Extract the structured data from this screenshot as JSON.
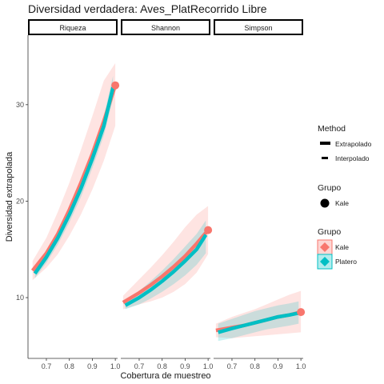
{
  "chart_data": {
    "type": "line",
    "title": "Diversidad verdadera: Aves_PlatRecorrido Libre",
    "xlabel": "Cobertura de muestreo",
    "ylabel": "Diversidad extrapolada",
    "x_ticks": [
      "0.7",
      "0.8",
      "0.9",
      "1.0"
    ],
    "y_ticks": [
      "10",
      "20",
      "30"
    ],
    "xlim": [
      0.62,
      1.01
    ],
    "ylim": [
      3.7,
      37.2
    ],
    "grid": false,
    "legend_position": "right",
    "colors": {
      "Kale": "#F8766D",
      "Platero": "#00BFC4"
    },
    "facets": [
      {
        "label": "Riqueza",
        "series": [
          {
            "name": "Kale",
            "color": "#F8766D",
            "x": [
              0.64,
              0.7,
              0.75,
              0.8,
              0.85,
              0.9,
              0.95,
              1.0
            ],
            "y": [
              12.8,
              14.6,
              16.6,
              19.1,
              21.9,
              24.9,
              28.3,
              32.0
            ],
            "lower": [
              11.8,
              13.1,
              14.5,
              16.4,
              18.6,
              21.2,
              24.2,
              27.8
            ],
            "upper": [
              13.8,
              16.2,
              18.9,
              21.9,
              25.3,
              28.8,
              32.5,
              34.3
            ]
          },
          {
            "name": "Platero",
            "color": "#00BFC4",
            "x": [
              0.65,
              0.7,
              0.75,
              0.8,
              0.85,
              0.9,
              0.95,
              0.99
            ],
            "y": [
              12.5,
              14.2,
              16.2,
              18.6,
              21.3,
              24.4,
              27.8,
              31.8
            ],
            "lower": [
              12.0,
              13.6,
              15.5,
              17.8,
              20.4,
              23.4,
              26.8,
              30.6
            ],
            "upper": [
              13.0,
              14.8,
              16.9,
              19.4,
              22.2,
              25.4,
              28.8,
              33.0
            ]
          }
        ],
        "endpoints": [
          {
            "name": "Kale",
            "x": 1.0,
            "y": 32.0
          }
        ]
      },
      {
        "label": "Shannon",
        "series": [
          {
            "name": "Kale",
            "color": "#F8766D",
            "x": [
              0.63,
              0.7,
              0.75,
              0.8,
              0.85,
              0.9,
              0.95,
              1.0
            ],
            "y": [
              9.5,
              10.5,
              11.3,
              12.2,
              13.2,
              14.3,
              15.6,
              17.0
            ],
            "lower": [
              8.8,
              9.3,
              9.6,
              10.0,
              10.6,
              11.4,
              12.6,
              14.5
            ],
            "upper": [
              10.2,
              11.9,
              13.1,
              14.4,
              15.8,
              17.3,
              18.6,
              19.5
            ]
          },
          {
            "name": "Platero",
            "color": "#00BFC4",
            "x": [
              0.64,
              0.7,
              0.75,
              0.8,
              0.85,
              0.9,
              0.95,
              0.99
            ],
            "y": [
              9.2,
              10.0,
              10.8,
              11.7,
              12.7,
              13.8,
              15.0,
              16.5
            ],
            "lower": [
              8.8,
              9.3,
              9.9,
              10.6,
              11.4,
              12.3,
              13.4,
              14.6
            ],
            "upper": [
              9.6,
              10.7,
              11.7,
              12.8,
              14.0,
              15.3,
              16.6,
              18.0
            ]
          }
        ],
        "endpoints": [
          {
            "name": "Kale",
            "x": 1.0,
            "y": 17.0
          }
        ]
      },
      {
        "label": "Simpson",
        "series": [
          {
            "name": "Kale",
            "color": "#F8766D",
            "x": [
              0.63,
              0.7,
              0.75,
              0.8,
              0.85,
              0.9,
              0.95,
              1.0
            ],
            "y": [
              6.6,
              6.9,
              7.1,
              7.4,
              7.7,
              8.0,
              8.2,
              8.5
            ],
            "lower": [
              5.9,
              5.8,
              5.9,
              6.0,
              6.1,
              6.2,
              6.3,
              6.4
            ],
            "upper": [
              7.3,
              8.0,
              8.4,
              8.8,
              9.3,
              9.8,
              10.3,
              10.7
            ]
          },
          {
            "name": "Platero",
            "color": "#00BFC4",
            "x": [
              0.64,
              0.7,
              0.75,
              0.8,
              0.85,
              0.9,
              0.95,
              0.99
            ],
            "y": [
              6.4,
              6.8,
              7.1,
              7.4,
              7.7,
              8.0,
              8.2,
              8.4
            ],
            "lower": [
              5.5,
              5.8,
              6.1,
              6.4,
              6.7,
              6.9,
              7.1,
              7.3
            ],
            "upper": [
              7.3,
              7.8,
              8.2,
              8.6,
              8.9,
              9.2,
              9.4,
              9.6
            ]
          }
        ],
        "endpoints": [
          {
            "name": "Kale",
            "x": 1.0,
            "y": 8.5
          }
        ]
      }
    ]
  },
  "legend": {
    "method_title": "Method",
    "method_items": [
      {
        "label": "Extrapolado",
        "style": "solid"
      },
      {
        "label": "Interpolado",
        "style": "dashed"
      }
    ],
    "point_title": "Grupo",
    "point_items": [
      {
        "label": "Kale"
      }
    ],
    "group_title": "Grupo",
    "group_items": [
      {
        "label": "Kale",
        "color": "#F8766D"
      },
      {
        "label": "Platero",
        "color": "#00BFC4"
      }
    ]
  }
}
